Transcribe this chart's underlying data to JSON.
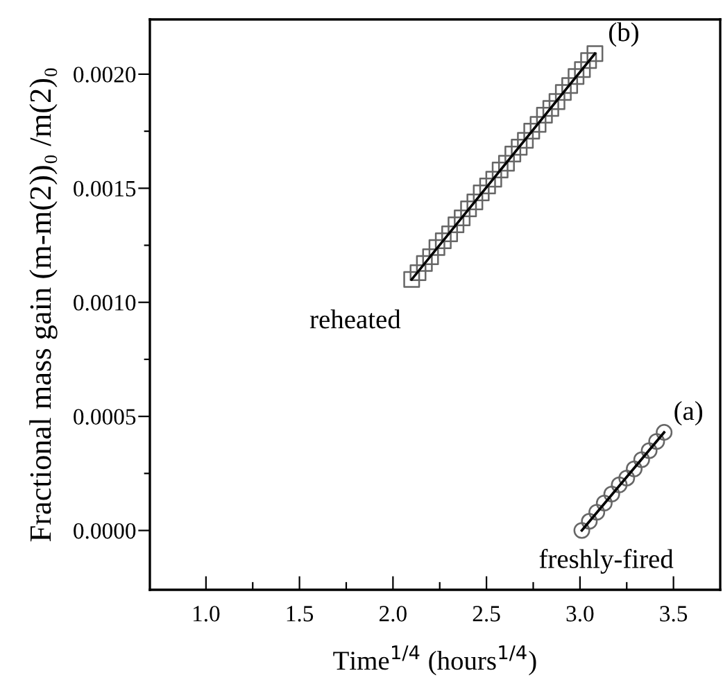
{
  "chart_data": {
    "type": "scatter",
    "xlabel": "Time$^{1/4}$ (hours$^{1/4}$)",
    "ylabel": "Fractional mass gain (m-m(2))₀ /m(2)₀",
    "xlim": [
      0.7,
      3.75
    ],
    "ylim": [
      -0.00026,
      0.00224
    ],
    "xticks": [
      {
        "value": 1.0,
        "label": "1.0"
      },
      {
        "value": 1.25,
        "label": null
      },
      {
        "value": 1.5,
        "label": "1.5"
      },
      {
        "value": 1.75,
        "label": null
      },
      {
        "value": 2.0,
        "label": "2.0"
      },
      {
        "value": 2.25,
        "label": null
      },
      {
        "value": 2.5,
        "label": "2.5"
      },
      {
        "value": 2.75,
        "label": null
      },
      {
        "value": 3.0,
        "label": "3.0"
      },
      {
        "value": 3.25,
        "label": null
      },
      {
        "value": 3.5,
        "label": "3.5"
      }
    ],
    "yticks": [
      {
        "value": 0.0,
        "label": "0.0000"
      },
      {
        "value": 0.00025,
        "label": null
      },
      {
        "value": 0.0005,
        "label": "0.0005"
      },
      {
        "value": 0.00075,
        "label": null
      },
      {
        "value": 0.001,
        "label": "0.0010"
      },
      {
        "value": 0.00125,
        "label": null
      },
      {
        "value": 0.0015,
        "label": "0.0015"
      },
      {
        "value": 0.00175,
        "label": null
      },
      {
        "value": 0.002,
        "label": "0.0020"
      }
    ],
    "grid": false,
    "series": [
      {
        "marker": "square",
        "color": "#666666",
        "x": [
          2.1,
          2.134,
          2.168,
          2.201,
          2.235,
          2.269,
          2.303,
          2.337,
          2.37,
          2.404,
          2.438,
          2.472,
          2.506,
          2.539,
          2.573,
          2.607,
          2.641,
          2.675,
          2.708,
          2.742,
          2.776,
          2.81,
          2.844,
          2.877,
          2.911,
          2.945,
          2.979,
          3.013,
          3.046,
          3.08
        ],
        "values": [
          0.0011,
          0.00113,
          0.00117,
          0.0012,
          0.00124,
          0.00127,
          0.0013,
          0.00134,
          0.00137,
          0.00141,
          0.00144,
          0.00148,
          0.00151,
          0.00154,
          0.00158,
          0.00161,
          0.00165,
          0.00168,
          0.00171,
          0.00175,
          0.00178,
          0.00182,
          0.00185,
          0.00188,
          0.00192,
          0.00195,
          0.00199,
          0.00202,
          0.00206,
          0.00209
        ]
      },
      {
        "type": "line",
        "marker": "none",
        "line_style": "solid",
        "color": "#000000",
        "x": [
          2.1,
          3.08
        ],
        "values": [
          0.0011,
          0.00209
        ]
      },
      {
        "marker": "circle",
        "color": "#666666",
        "x": [
          3.01,
          3.05,
          3.09,
          3.13,
          3.17,
          3.21,
          3.25,
          3.29,
          3.33,
          3.37,
          3.41,
          3.45
        ],
        "values": [
          0.0,
          4e-05,
          8e-05,
          0.00012,
          0.00016,
          0.0002,
          0.00023,
          0.00027,
          0.00031,
          0.00035,
          0.00039,
          0.00043
        ]
      },
      {
        "type": "line",
        "marker": "none",
        "line_style": "solid",
        "color": "#000000",
        "x": [
          3.01,
          3.45
        ],
        "values": [
          0.0,
          0.00043
        ]
      }
    ],
    "annotations": [
      {
        "text": "(b)",
        "x": 3.15,
        "y": 0.00212
      },
      "reheated",
      {
        "text": "(a)",
        "x": 3.5,
        "y": 0.00046
      },
      "freshly-fired"
    ]
  }
}
